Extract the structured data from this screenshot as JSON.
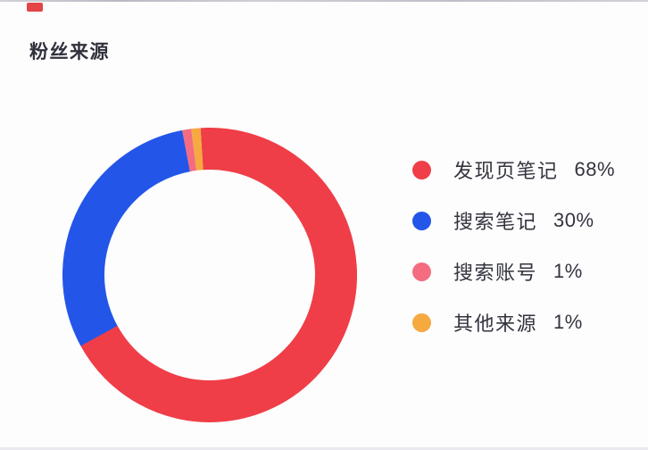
{
  "card": {
    "title": "粉丝来源"
  },
  "chart_data": {
    "type": "pie",
    "subtype": "donut",
    "title": "粉丝来源",
    "legend_position": "right",
    "grid": false,
    "start_angle_deg": -3.6,
    "direction": "clockwise",
    "ring_inner_radius_ratio": 0.72,
    "categories": [
      "发现页笔记",
      "搜索笔记",
      "搜索账号",
      "其他来源"
    ],
    "values": [
      68,
      30,
      1,
      1
    ],
    "segments": [
      {
        "label": "发现页笔记",
        "value_pct": 68,
        "pct_label": "68%",
        "color": "#ef3e47"
      },
      {
        "label": "搜索笔记",
        "value_pct": 30,
        "pct_label": "30%",
        "color": "#2356e8"
      },
      {
        "label": "搜索账号",
        "value_pct": 1,
        "pct_label": "1%",
        "color": "#f46c80"
      },
      {
        "label": "其他来源",
        "value_pct": 1,
        "pct_label": "1%",
        "color": "#f5a93f"
      }
    ]
  }
}
